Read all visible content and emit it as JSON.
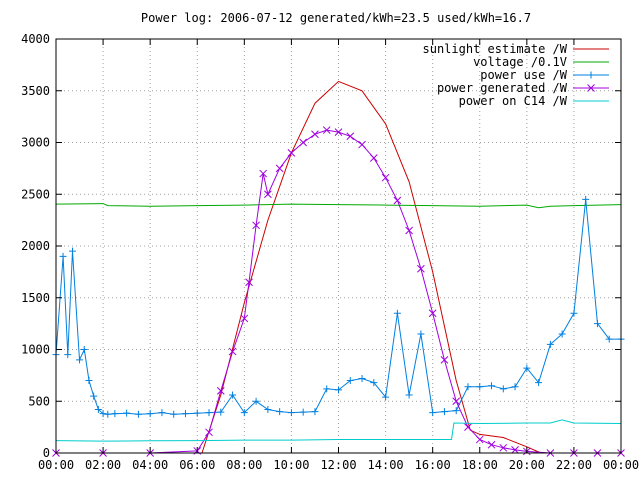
{
  "chart_data": {
    "type": "line",
    "title": "Power log: 2006-07-12 generated/kWh=23.5 used/kWh=16.7",
    "xlabel": "",
    "ylabel": "",
    "xlim": [
      0,
      24
    ],
    "ylim": [
      0,
      4000
    ],
    "grid": true,
    "legend_position": "top-right",
    "x_ticks": [
      {
        "value": 0,
        "label": "00:00"
      },
      {
        "value": 2,
        "label": "02:00"
      },
      {
        "value": 4,
        "label": "04:00"
      },
      {
        "value": 6,
        "label": "06:00"
      },
      {
        "value": 8,
        "label": "08:00"
      },
      {
        "value": 10,
        "label": "10:00"
      },
      {
        "value": 12,
        "label": "12:00"
      },
      {
        "value": 14,
        "label": "14:00"
      },
      {
        "value": 16,
        "label": "16:00"
      },
      {
        "value": 18,
        "label": "18:00"
      },
      {
        "value": 20,
        "label": "20:00"
      },
      {
        "value": 22,
        "label": "22:00"
      },
      {
        "value": 24,
        "label": "00:00"
      }
    ],
    "y_ticks": [
      {
        "value": 0,
        "label": "0"
      },
      {
        "value": 500,
        "label": "500"
      },
      {
        "value": 1000,
        "label": "1000"
      },
      {
        "value": 1500,
        "label": "1500"
      },
      {
        "value": 2000,
        "label": "2000"
      },
      {
        "value": 2500,
        "label": "2500"
      },
      {
        "value": 3000,
        "label": "3000"
      },
      {
        "value": 3500,
        "label": "3500"
      },
      {
        "value": 4000,
        "label": "4000"
      }
    ],
    "series": [
      {
        "name": "sunlight estimate /W",
        "color": "#cc0000",
        "marker": "none",
        "x": [
          6.2,
          7,
          8,
          9,
          10,
          11,
          12,
          13,
          14,
          15,
          16,
          17,
          17.6,
          18,
          19,
          20,
          20.6
        ],
        "y": [
          0,
          560,
          1450,
          2250,
          2900,
          3380,
          3590,
          3500,
          3180,
          2620,
          1750,
          700,
          220,
          180,
          150,
          60,
          0
        ]
      },
      {
        "name": "voltage /0.1V",
        "color": "#00aa00",
        "marker": "none",
        "x": [
          0,
          2,
          2.2,
          4,
          6,
          8,
          10,
          12,
          14,
          16,
          18,
          20,
          20.5,
          21,
          22,
          24
        ],
        "y": [
          2405,
          2410,
          2390,
          2385,
          2390,
          2395,
          2405,
          2400,
          2395,
          2390,
          2385,
          2395,
          2370,
          2385,
          2390,
          2400
        ]
      },
      {
        "name": "power use /W",
        "color": "#0080e0",
        "marker": "plus",
        "x": [
          0,
          0.3,
          0.5,
          0.7,
          1.0,
          1.2,
          1.4,
          1.6,
          1.8,
          2.0,
          2.2,
          2.5,
          3.0,
          3.5,
          4.0,
          4.5,
          5.0,
          5.5,
          6.0,
          6.5,
          7.0,
          7.5,
          8.0,
          8.5,
          9.0,
          9.5,
          10.0,
          10.5,
          11.0,
          11.5,
          12.0,
          12.5,
          13.0,
          13.5,
          14.0,
          14.5,
          15.0,
          15.5,
          16.0,
          16.5,
          17.0,
          17.5,
          18.0,
          18.5,
          19.0,
          19.5,
          20.0,
          20.5,
          21.0,
          21.5,
          22.0,
          22.5,
          23.0,
          23.5,
          24.0
        ],
        "y": [
          950,
          1900,
          950,
          1950,
          900,
          1000,
          700,
          550,
          420,
          380,
          375,
          380,
          385,
          375,
          380,
          390,
          375,
          380,
          385,
          390,
          395,
          560,
          390,
          500,
          420,
          400,
          390,
          395,
          400,
          620,
          610,
          700,
          720,
          680,
          540,
          1350,
          560,
          1150,
          390,
          400,
          410,
          640,
          640,
          650,
          620,
          640,
          820,
          680,
          1050,
          1150,
          1350,
          2450,
          1250,
          1100,
          1100
        ]
      },
      {
        "name": "power generated /W",
        "color": "#a000e0",
        "marker": "cross",
        "x": [
          0,
          2,
          4,
          6.0,
          6.5,
          7.0,
          7.5,
          8.0,
          8.2,
          8.5,
          8.8,
          9.0,
          9.5,
          10.0,
          10.5,
          11.0,
          11.5,
          12.0,
          12.5,
          13.0,
          13.5,
          14.0,
          14.5,
          15.0,
          15.5,
          16.0,
          16.5,
          17.0,
          17.5,
          18.0,
          18.5,
          19.0,
          19.5,
          20.0,
          21.0,
          22.0,
          23.0,
          24.0
        ],
        "y": [
          0,
          0,
          0,
          20,
          200,
          600,
          980,
          1300,
          1650,
          2200,
          2700,
          2500,
          2750,
          2900,
          3000,
          3080,
          3120,
          3100,
          3060,
          2980,
          2850,
          2660,
          2440,
          2150,
          1780,
          1350,
          900,
          500,
          250,
          130,
          80,
          50,
          30,
          15,
          0,
          0,
          0,
          0
        ]
      },
      {
        "name": "power on C14 /W",
        "color": "#00cccc",
        "marker": "none",
        "x": [
          0,
          2,
          4,
          6,
          8,
          10,
          12,
          14,
          16,
          16.8,
          16.9,
          18,
          20,
          21,
          21.5,
          22,
          24
        ],
        "y": [
          120,
          115,
          118,
          120,
          125,
          125,
          130,
          130,
          130,
          130,
          290,
          285,
          290,
          290,
          320,
          290,
          285
        ]
      }
    ]
  }
}
